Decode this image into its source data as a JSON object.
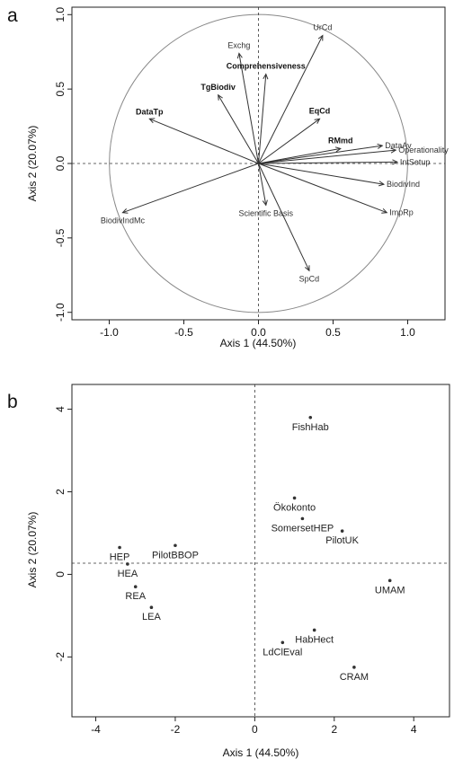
{
  "chart_data": [
    {
      "panel": "a",
      "type": "scatter",
      "xlabel": "Axis 1 (44.50%)",
      "ylabel": "Axis 2 (20.07%)",
      "xlim": [
        -1.25,
        1.25
      ],
      "ylim": [
        -1.05,
        1.05
      ],
      "xticks": [
        "-1.0",
        "-0.5",
        "0.0",
        "0.5",
        "1.0"
      ],
      "xtick_values": [
        -1,
        -0.5,
        0,
        0.5,
        1
      ],
      "yticks": [
        "-1.0",
        "-0.5",
        "0.0",
        "0.5",
        "1.0"
      ],
      "ytick_values": [
        -1,
        -0.5,
        0,
        0.5,
        1
      ],
      "vectors": [
        {
          "label": "Exchg",
          "x": -0.13,
          "y": 0.74,
          "bold": false
        },
        {
          "label": "UrCd",
          "x": 0.43,
          "y": 0.86,
          "bold": false
        },
        {
          "label": "Comprehensiveness",
          "x": 0.05,
          "y": 0.6,
          "bold": true
        },
        {
          "label": "TgBiodiv",
          "x": -0.27,
          "y": 0.46,
          "bold": true
        },
        {
          "label": "DataTp",
          "x": -0.73,
          "y": 0.3,
          "bold": true
        },
        {
          "label": "EqCd",
          "x": 0.41,
          "y": 0.3,
          "bold": true
        },
        {
          "label": "RMmd",
          "x": 0.55,
          "y": 0.1,
          "bold": true
        },
        {
          "label": "DataAv",
          "x": 0.83,
          "y": 0.12,
          "bold": false
        },
        {
          "label": "Operationality",
          "x": 0.92,
          "y": 0.09,
          "bold": false
        },
        {
          "label": "IntSetup",
          "x": 0.93,
          "y": 0.01,
          "bold": false
        },
        {
          "label": "BiodivInd",
          "x": 0.84,
          "y": -0.14,
          "bold": false
        },
        {
          "label": "ImpRp",
          "x": 0.86,
          "y": -0.33,
          "bold": false
        },
        {
          "label": "BiodivIndMc",
          "x": -0.91,
          "y": -0.33,
          "bold": false
        },
        {
          "label": "Scientific Basis",
          "x": 0.05,
          "y": -0.28,
          "bold": false
        },
        {
          "label": "SpCd",
          "x": 0.34,
          "y": -0.72,
          "bold": false
        }
      ]
    },
    {
      "panel": "b",
      "type": "scatter",
      "xlabel": "Axis 1 (44.50%)",
      "ylabel": "Axis 2 (20.07%)",
      "xlim": [
        -4.6,
        4.9
      ],
      "ylim": [
        -3.45,
        4.6
      ],
      "xticks": [
        "-4",
        "-2",
        "0",
        "2",
        "4"
      ],
      "xtick_values": [
        -4,
        -2,
        0,
        2,
        4
      ],
      "yticks": [
        "-2",
        "0",
        "2",
        "4"
      ],
      "ytick_values": [
        -2,
        0,
        2,
        4
      ],
      "hline": 0.27,
      "points": [
        {
          "label": "FishHab",
          "x": 1.4,
          "y": 3.8
        },
        {
          "label": "Ökokonto",
          "x": 1.0,
          "y": 1.85
        },
        {
          "label": "SomersetHEP",
          "x": 1.2,
          "y": 1.35
        },
        {
          "label": "PilotUK",
          "x": 2.2,
          "y": 1.05
        },
        {
          "label": "HEP",
          "x": -3.4,
          "y": 0.65
        },
        {
          "label": "PilotBBOP",
          "x": -2.0,
          "y": 0.7
        },
        {
          "label": "HEA",
          "x": -3.2,
          "y": 0.25
        },
        {
          "label": "REA",
          "x": -3.0,
          "y": -0.3
        },
        {
          "label": "LEA",
          "x": -2.6,
          "y": -0.8
        },
        {
          "label": "UMAM",
          "x": 3.4,
          "y": -0.15
        },
        {
          "label": "HabHect",
          "x": 1.5,
          "y": -1.35
        },
        {
          "label": "LdClEval",
          "x": 0.7,
          "y": -1.65
        },
        {
          "label": "CRAM",
          "x": 2.5,
          "y": -2.25
        }
      ]
    }
  ]
}
